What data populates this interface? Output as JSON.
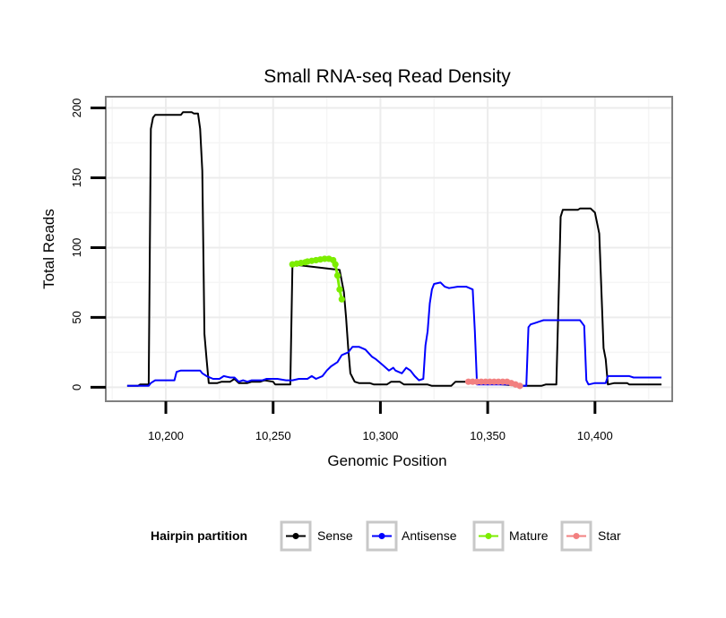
{
  "chart_data": {
    "type": "line",
    "title": "Small RNA-seq Read Density",
    "xlabel": "Genomic Position",
    "ylabel": "Total Reads",
    "xlim": [
      10172,
      10436
    ],
    "ylim": [
      -10,
      208
    ],
    "x_ticks": [
      10200,
      10250,
      10300,
      10350,
      10400
    ],
    "x_tick_labels": [
      "10,200",
      "10,250",
      "10,300",
      "10,350",
      "10,400"
    ],
    "y_ticks": [
      0,
      50,
      100,
      150,
      200
    ],
    "y_tick_labels": [
      "0",
      "50",
      "100",
      "150",
      "200"
    ],
    "grid": true,
    "legend": {
      "title": "Hairpin partition",
      "position": "bottom"
    },
    "series": [
      {
        "name": "Sense",
        "color": "#000000",
        "points": [
          [
            10182,
            1
          ],
          [
            10187,
            1
          ],
          [
            10188,
            2
          ],
          [
            10192,
            2
          ],
          [
            10193,
            185
          ],
          [
            10194,
            193
          ],
          [
            10195,
            195
          ],
          [
            10203,
            195
          ],
          [
            10207,
            195
          ],
          [
            10208,
            197
          ],
          [
            10212,
            197
          ],
          [
            10213,
            196
          ],
          [
            10215,
            196
          ],
          [
            10216,
            185
          ],
          [
            10217,
            155
          ],
          [
            10218,
            38
          ],
          [
            10219,
            20
          ],
          [
            10220,
            3
          ],
          [
            10224,
            3
          ],
          [
            10226,
            4
          ],
          [
            10230,
            4
          ],
          [
            10232,
            6
          ],
          [
            10234,
            3
          ],
          [
            10238,
            3
          ],
          [
            10240,
            4
          ],
          [
            10244,
            4
          ],
          [
            10246,
            5
          ],
          [
            10250,
            4
          ],
          [
            10251,
            2
          ],
          [
            10258,
            2
          ],
          [
            10259,
            88
          ],
          [
            10281,
            84
          ],
          [
            10283,
            68
          ],
          [
            10284,
            50
          ],
          [
            10285,
            28
          ],
          [
            10286,
            10
          ],
          [
            10288,
            4
          ],
          [
            10290,
            3
          ],
          [
            10295,
            3
          ],
          [
            10297,
            2
          ],
          [
            10303,
            2
          ],
          [
            10305,
            4
          ],
          [
            10309,
            4
          ],
          [
            10311,
            2
          ],
          [
            10322,
            2
          ],
          [
            10324,
            1
          ],
          [
            10333,
            1
          ],
          [
            10335,
            4
          ],
          [
            10341,
            4
          ],
          [
            10365,
            1
          ],
          [
            10375,
            1
          ],
          [
            10377,
            2
          ],
          [
            10382,
            2
          ],
          [
            10383,
            60
          ],
          [
            10384,
            122
          ],
          [
            10385,
            127
          ],
          [
            10392,
            127
          ],
          [
            10393,
            128
          ],
          [
            10398,
            128
          ],
          [
            10400,
            125
          ],
          [
            10402,
            110
          ],
          [
            10404,
            28
          ],
          [
            10405,
            20
          ],
          [
            10406,
            2
          ],
          [
            10409,
            3
          ],
          [
            10415,
            3
          ],
          [
            10416,
            2
          ],
          [
            10431,
            2
          ]
        ]
      },
      {
        "name": "Antisense",
        "color": "#0000ff",
        "points": [
          [
            10182,
            1
          ],
          [
            10192,
            1
          ],
          [
            10193,
            3
          ],
          [
            10195,
            5
          ],
          [
            10204,
            5
          ],
          [
            10205,
            11
          ],
          [
            10207,
            12
          ],
          [
            10216,
            12
          ],
          [
            10217,
            10
          ],
          [
            10219,
            8
          ],
          [
            10222,
            6
          ],
          [
            10225,
            6
          ],
          [
            10227,
            8
          ],
          [
            10230,
            7
          ],
          [
            10232,
            7
          ],
          [
            10234,
            4
          ],
          [
            10236,
            5
          ],
          [
            10238,
            4
          ],
          [
            10240,
            5
          ],
          [
            10245,
            5
          ],
          [
            10247,
            6
          ],
          [
            10252,
            6
          ],
          [
            10256,
            5
          ],
          [
            10259,
            5
          ],
          [
            10262,
            6
          ],
          [
            10266,
            6
          ],
          [
            10268,
            8
          ],
          [
            10270,
            6
          ],
          [
            10273,
            8
          ],
          [
            10275,
            12
          ],
          [
            10277,
            15
          ],
          [
            10280,
            18
          ],
          [
            10282,
            23
          ],
          [
            10285,
            25
          ],
          [
            10287,
            29
          ],
          [
            10290,
            29
          ],
          [
            10293,
            27
          ],
          [
            10296,
            22
          ],
          [
            10298,
            20
          ],
          [
            10301,
            16
          ],
          [
            10304,
            12
          ],
          [
            10306,
            14
          ],
          [
            10307,
            12
          ],
          [
            10310,
            10
          ],
          [
            10312,
            14
          ],
          [
            10314,
            12
          ],
          [
            10316,
            8
          ],
          [
            10318,
            5
          ],
          [
            10320,
            6
          ],
          [
            10321,
            30
          ],
          [
            10322,
            40
          ],
          [
            10323,
            60
          ],
          [
            10324,
            70
          ],
          [
            10325,
            74
          ],
          [
            10328,
            75
          ],
          [
            10330,
            72
          ],
          [
            10332,
            71
          ],
          [
            10336,
            72
          ],
          [
            10340,
            72
          ],
          [
            10343,
            70
          ],
          [
            10344,
            40
          ],
          [
            10345,
            2
          ],
          [
            10350,
            2
          ],
          [
            10355,
            2
          ],
          [
            10360,
            2
          ],
          [
            10364,
            2
          ],
          [
            10366,
            1
          ],
          [
            10368,
            1
          ],
          [
            10369,
            43
          ],
          [
            10370,
            45
          ],
          [
            10372,
            46
          ],
          [
            10374,
            47
          ],
          [
            10376,
            48
          ],
          [
            10390,
            48
          ],
          [
            10393,
            48
          ],
          [
            10395,
            44
          ],
          [
            10396,
            5
          ],
          [
            10397,
            2
          ],
          [
            10400,
            3
          ],
          [
            10405,
            3
          ],
          [
            10406,
            8
          ],
          [
            10416,
            8
          ],
          [
            10418,
            7
          ],
          [
            10431,
            7
          ]
        ]
      },
      {
        "name": "Mature",
        "color": "#7ced00",
        "points": [
          [
            10259,
            88
          ],
          [
            10261,
            88.5
          ],
          [
            10263,
            89
          ],
          [
            10265,
            89.5
          ],
          [
            10266,
            90
          ],
          [
            10268,
            90.5
          ],
          [
            10270,
            91
          ],
          [
            10272,
            91.5
          ],
          [
            10274,
            92
          ],
          [
            10276,
            92
          ],
          [
            10278,
            91
          ],
          [
            10279,
            88
          ],
          [
            10280,
            80
          ],
          [
            10281,
            70
          ],
          [
            10282,
            63
          ]
        ]
      },
      {
        "name": "Star",
        "color": "#f28080",
        "points": [
          [
            10341,
            4
          ],
          [
            10343,
            4
          ],
          [
            10345,
            4
          ],
          [
            10347,
            4
          ],
          [
            10349,
            4
          ],
          [
            10351,
            4
          ],
          [
            10353,
            4
          ],
          [
            10355,
            4
          ],
          [
            10357,
            4
          ],
          [
            10359,
            4
          ],
          [
            10361,
            3
          ],
          [
            10363,
            2
          ],
          [
            10365,
            1
          ]
        ]
      }
    ]
  }
}
